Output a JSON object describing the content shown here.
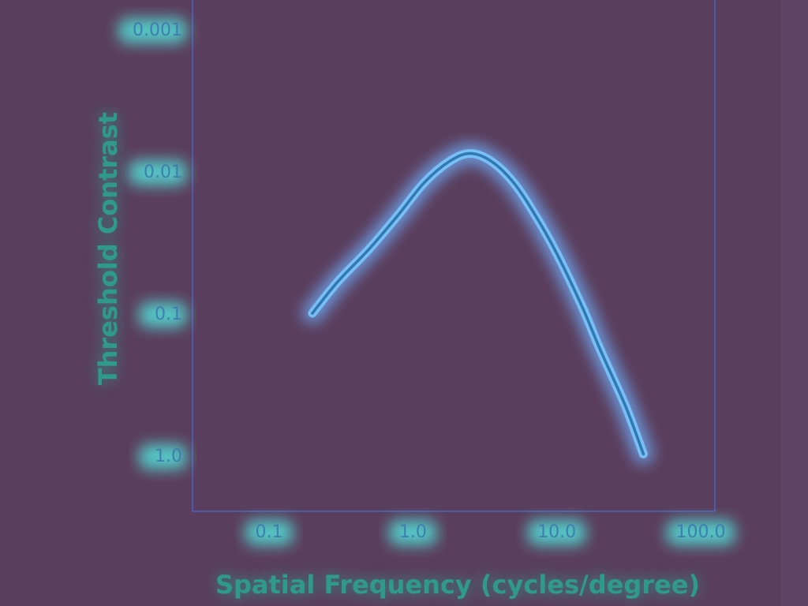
{
  "chart_data": {
    "type": "line",
    "title": "",
    "xlabel": "Spatial Frequency (cycles/degree)",
    "ylabel": "Threshold Contrast",
    "x_scale": "log",
    "y_scale": "log",
    "y_inverted": true,
    "xlim": [
      0.05,
      100
    ],
    "ylim": [
      1.0,
      0.001
    ],
    "x_ticks": [
      {
        "value": 0.1,
        "label": "0.1"
      },
      {
        "value": 1.0,
        "label": "1.0"
      },
      {
        "value": 10.0,
        "label": "10.0"
      },
      {
        "value": 100.0,
        "label": "100.0"
      }
    ],
    "y_ticks": [
      {
        "value": 0.001,
        "label": "0.001"
      },
      {
        "value": 0.01,
        "label": "0.01"
      },
      {
        "value": 0.1,
        "label": "0.1"
      },
      {
        "value": 1.0,
        "label": "1.0"
      }
    ],
    "grid": false,
    "series": [
      {
        "color": "#2f78b0",
        "x": [
          0.2,
          0.3,
          0.5,
          0.8,
          1.2,
          1.8,
          2.5,
          3.5,
          5,
          7,
          10,
          15,
          20,
          30,
          40
        ],
        "y": [
          0.1,
          0.06,
          0.035,
          0.02,
          0.012,
          0.0085,
          0.0075,
          0.0085,
          0.012,
          0.02,
          0.038,
          0.09,
          0.18,
          0.45,
          0.98
        ]
      }
    ]
  }
}
